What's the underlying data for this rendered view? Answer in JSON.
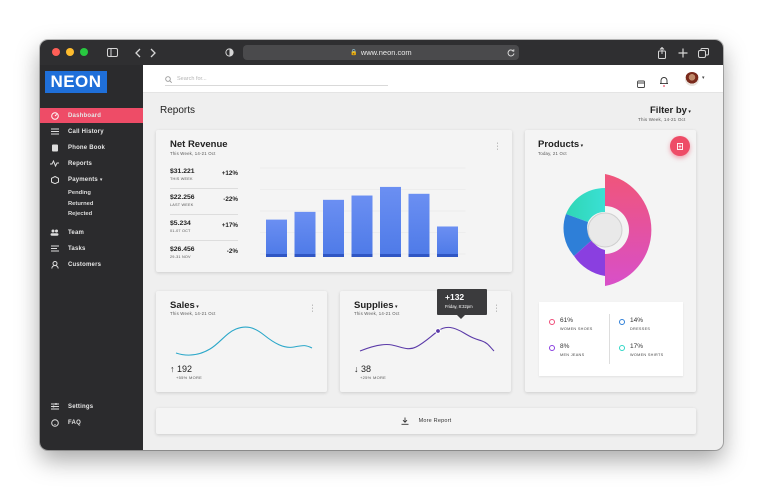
{
  "browser": {
    "url": "www.neon.com"
  },
  "app": {
    "logo": "NEON"
  },
  "sidebar": {
    "items": [
      {
        "label": "Dashboard",
        "icon": "dashboard-icon"
      },
      {
        "label": "Call History",
        "icon": "list-icon"
      },
      {
        "label": "Phone Book",
        "icon": "phone-book-icon"
      },
      {
        "label": "Reports",
        "icon": "pulse-icon"
      },
      {
        "label": "Payments",
        "icon": "cube-icon"
      },
      {
        "label": "Team",
        "icon": "team-icon"
      },
      {
        "label": "Tasks",
        "icon": "tasks-icon"
      },
      {
        "label": "Customers",
        "icon": "customer-icon"
      }
    ],
    "payment_sub": [
      "Pending",
      "Returned",
      "Rejected"
    ],
    "bottom": [
      {
        "label": "Settings",
        "icon": "settings-icon"
      },
      {
        "label": "FAQ",
        "icon": "help-icon"
      }
    ]
  },
  "topbar": {
    "search_placeholder": "Search for..."
  },
  "page": {
    "title": "Reports",
    "filter_label": "Filter by",
    "filter_range": "This Week, 14-21 Oct"
  },
  "revenue": {
    "title": "Net Revenue",
    "subtitle": "This Week, 14-21 Oct",
    "rows": [
      {
        "value": "$31.221",
        "label": "THIS WEEK",
        "pct": "+12%"
      },
      {
        "value": "$22.256",
        "label": "LAST WEEK",
        "pct": "-22%"
      },
      {
        "value": "$5.234",
        "label": "01-07 OCT",
        "pct": "+17%"
      },
      {
        "value": "$26.456",
        "label": "29-31 NOV",
        "pct": "-2%"
      }
    ]
  },
  "chart_data": {
    "type": "bar",
    "values": [
      40,
      49,
      63,
      68,
      78,
      70,
      32
    ]
  },
  "products": {
    "title": "Products",
    "subtitle": "Today, 21 Oct",
    "legend": [
      {
        "pct": "61%",
        "name": "WOMEN SHOES",
        "color": "#ee4c78"
      },
      {
        "pct": "14%",
        "name": "DRESSES",
        "color": "#2e7fd8"
      },
      {
        "pct": "8%",
        "name": "MEN JEANS",
        "color": "#8a3fe0"
      },
      {
        "pct": "17%",
        "name": "WOMEN SHIRTS",
        "color": "#2fd6c6"
      }
    ]
  },
  "sales": {
    "title": "Sales",
    "subtitle": "This Week, 14-21 Oct",
    "value": "192",
    "more": "+55% MORE"
  },
  "supplies": {
    "title": "Supplies",
    "subtitle": "This Week, 14-21 Oct",
    "value": "38",
    "more": "+25% MORE",
    "tooltip_value": "+132",
    "tooltip_time": "Friday, 8:32pm"
  },
  "more_report": "More Report",
  "colors": {
    "accent": "#ee4c67",
    "bar": "#5b86f0",
    "sidebar": "#2b2b2d"
  }
}
